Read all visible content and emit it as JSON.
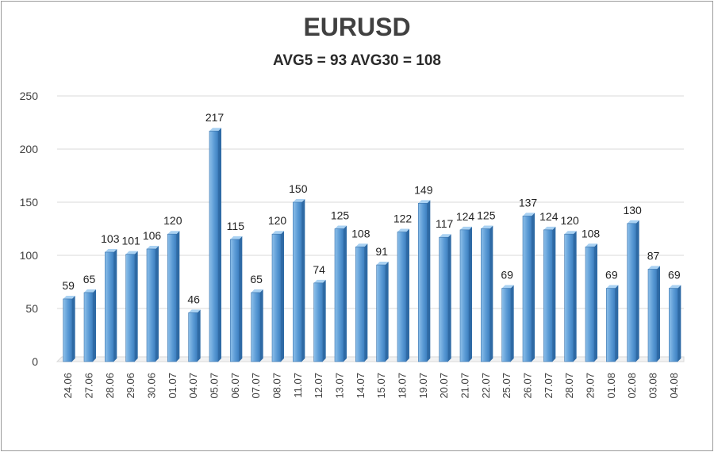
{
  "chart_data": {
    "type": "bar",
    "title": "EURUSD",
    "subtitle": "AVG5 = 93 AVG30 = 108",
    "categories": [
      "24.06",
      "27.06",
      "28.06",
      "29.06",
      "30.06",
      "01.07",
      "04.07",
      "05.07",
      "06.07",
      "07.07",
      "08.07",
      "11.07",
      "12.07",
      "13.07",
      "14.07",
      "15.07",
      "18.07",
      "19.07",
      "20.07",
      "21.07",
      "22.07",
      "25.07",
      "26.07",
      "27.07",
      "28.07",
      "29.07",
      "01.08",
      "02.08",
      "03.08",
      "04.08"
    ],
    "values": [
      59,
      65,
      103,
      101,
      106,
      120,
      46,
      217,
      115,
      65,
      120,
      150,
      74,
      125,
      108,
      91,
      122,
      149,
      117,
      124,
      125,
      69,
      137,
      124,
      120,
      108,
      69,
      130,
      87,
      69
    ],
    "ylim": [
      0,
      250
    ],
    "yticks": [
      0,
      50,
      100,
      150,
      200,
      250
    ],
    "xlabel": "",
    "ylabel": "",
    "grid": true,
    "legend": "none",
    "colors": {
      "bar_front": "#5b9bd5",
      "bar_light": "#8ec0ea",
      "bar_side": "#2e6aa5",
      "bar_top": "#a9d1f2",
      "grid": "#d9d9d9",
      "text": "#404040"
    }
  }
}
